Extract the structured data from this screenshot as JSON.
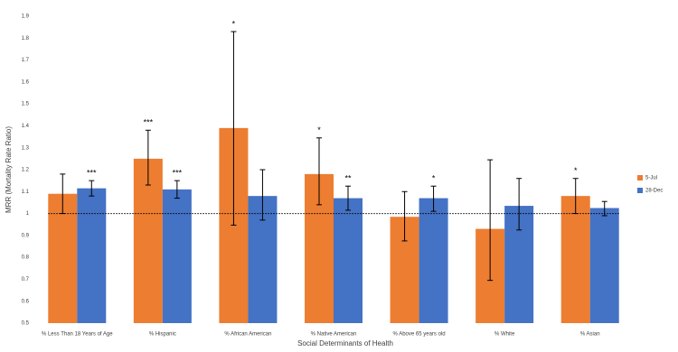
{
  "chart_data": {
    "type": "bar",
    "x_label": "Social Determinants of Health",
    "y_label": "MRR (Mortality Rate Ratio)",
    "categories": [
      "% Less Than 18 Years of Age",
      "% Hispanic",
      "% African American",
      "% Native American",
      "% Above 65 years old",
      "% White",
      "% Asian"
    ],
    "series": [
      {
        "name": "5-Jul",
        "color": "#ed7d31",
        "values": [
          1.09,
          1.25,
          1.39,
          1.18,
          0.985,
          0.93,
          1.08
        ],
        "lower": [
          1.0,
          1.13,
          0.947,
          1.04,
          0.875,
          0.695,
          1.0
        ],
        "upper": [
          1.18,
          1.38,
          1.83,
          1.345,
          1.1,
          1.245,
          1.16
        ],
        "significance": [
          null,
          "***",
          "*",
          "*",
          null,
          null,
          "*"
        ]
      },
      {
        "name": "28-Dec",
        "color": "#4472c4",
        "values": [
          1.115,
          1.11,
          1.08,
          1.07,
          1.07,
          1.035,
          1.025
        ],
        "lower": [
          1.08,
          1.07,
          0.97,
          1.015,
          1.01,
          0.925,
          0.99
        ],
        "upper": [
          1.15,
          1.15,
          1.2,
          1.125,
          1.125,
          1.16,
          1.055
        ],
        "significance": [
          "***",
          "***",
          null,
          "**",
          "*",
          null,
          null
        ]
      }
    ],
    "reference_line": 1,
    "ylim": [
      0.5,
      1.9
    ],
    "yticks": [
      0.5,
      0.6,
      0.7,
      0.8,
      0.9,
      1,
      1.1,
      1.2,
      1.3,
      1.4,
      1.5,
      1.6,
      1.7,
      1.8,
      1.9
    ],
    "legend": "right"
  }
}
